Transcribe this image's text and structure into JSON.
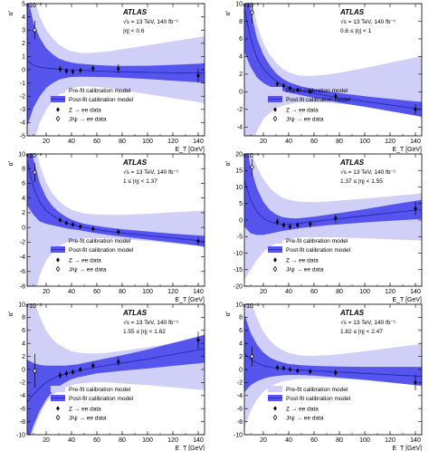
{
  "colors": {
    "prefit_band": "#cfcff7",
    "postfit_band": "#5555ee",
    "postfit_line": "#2222aa",
    "axes": "#000000"
  },
  "common": {
    "atlas_label": "ATLAS",
    "energy_label": "√s = 13 TeV, 140 fb⁻¹",
    "xlabel": "E_T [GeV]",
    "ylabel": "α'",
    "y_exponent": "×10⁻³",
    "legend": {
      "prefit": "Pre-fit calibration model",
      "postfit": "Post-fit calibration model",
      "zee": "Z → ee data",
      "jpsi": "J/ψ → ee data"
    }
  },
  "chart_data": [
    {
      "type": "line",
      "eta_label": "|η| < 0.6",
      "xlim": [
        5,
        145
      ],
      "ylim": [
        -5,
        5
      ],
      "yticks": [
        -5,
        -4,
        -3,
        -2,
        -1,
        0,
        1,
        2,
        3,
        4,
        5
      ],
      "xticks": [
        20,
        40,
        60,
        80,
        100,
        120,
        140
      ],
      "legend_pos": "bottom-right",
      "postfit_x": [
        5,
        10,
        15,
        20,
        25,
        30,
        35,
        40,
        45,
        50,
        60,
        70,
        80,
        100,
        120,
        140,
        145
      ],
      "postfit_center": [
        0.7,
        0.35,
        0.2,
        0.12,
        0.08,
        0.05,
        0.02,
        0.0,
        -0.03,
        -0.05,
        -0.1,
        -0.13,
        -0.16,
        -0.2,
        -0.23,
        -0.25,
        -0.26
      ],
      "postfit_half": [
        5.0,
        3.2,
        2.2,
        1.5,
        1.1,
        0.8,
        0.65,
        0.55,
        0.5,
        0.48,
        0.45,
        0.44,
        0.45,
        0.5,
        0.6,
        0.7,
        0.75
      ],
      "prefit_x": [
        5,
        10,
        15,
        20,
        25,
        30,
        35,
        40,
        45,
        50,
        60,
        70,
        80,
        100,
        120,
        140,
        145
      ],
      "prefit_center": [
        0.0,
        0.0,
        0.0,
        0.0,
        0.0,
        0.0,
        0.0,
        0.0,
        0.0,
        0.0,
        0.0,
        0.0,
        0.0,
        0.0,
        0.0,
        0.0,
        0.0
      ],
      "prefit_half": [
        8.0,
        5.5,
        4.0,
        3.0,
        2.4,
        1.9,
        1.6,
        1.4,
        1.3,
        1.25,
        1.3,
        1.4,
        1.55,
        1.85,
        2.15,
        2.45,
        2.55
      ],
      "zee": {
        "x": [
          31,
          36,
          41,
          47,
          57,
          77,
          140
        ],
        "y": [
          0.05,
          -0.1,
          -0.15,
          -0.05,
          0.1,
          0.08,
          -0.45
        ],
        "err": [
          0.25,
          0.22,
          0.2,
          0.2,
          0.25,
          0.35,
          0.5
        ]
      },
      "jpsi": {
        "x": [
          11
        ],
        "y": [
          3.0
        ],
        "err": [
          0.7
        ]
      }
    },
    {
      "type": "line",
      "eta_label": "0.6 ≤ |η| < 1",
      "xlim": [
        5,
        145
      ],
      "ylim": [
        -5,
        10
      ],
      "yticks": [
        -4,
        -2,
        0,
        2,
        4,
        6,
        8,
        10
      ],
      "xticks": [
        20,
        40,
        60,
        80,
        100,
        120,
        140
      ],
      "legend_pos": "bottom-right",
      "postfit_x": [
        5,
        10,
        15,
        20,
        25,
        30,
        35,
        40,
        45,
        50,
        60,
        70,
        80,
        100,
        120,
        140,
        145
      ],
      "postfit_center": [
        9.5,
        6.0,
        3.8,
        2.6,
        1.8,
        1.2,
        0.8,
        0.5,
        0.3,
        0.1,
        -0.2,
        -0.45,
        -0.7,
        -1.1,
        -1.5,
        -1.9,
        -2.0
      ],
      "postfit_half": [
        5.0,
        3.2,
        2.2,
        1.6,
        1.2,
        0.9,
        0.7,
        0.6,
        0.55,
        0.5,
        0.5,
        0.5,
        0.55,
        0.6,
        0.7,
        0.8,
        0.85
      ],
      "prefit_x": [
        5,
        10,
        15,
        20,
        25,
        30,
        35,
        40,
        45,
        50,
        60,
        70,
        80,
        100,
        120,
        140,
        145
      ],
      "prefit_center": [
        3.0,
        2.2,
        1.6,
        1.2,
        0.9,
        0.7,
        0.5,
        0.4,
        0.35,
        0.3,
        0.3,
        0.35,
        0.4,
        0.6,
        0.8,
        1.0,
        1.05
      ],
      "prefit_half": [
        14.0,
        9.0,
        6.0,
        4.3,
        3.3,
        2.6,
        2.1,
        1.8,
        1.6,
        1.5,
        1.5,
        1.6,
        1.75,
        2.1,
        2.5,
        2.9,
        3.0
      ],
      "zee": {
        "x": [
          31,
          36,
          41,
          47,
          57,
          77,
          140
        ],
        "y": [
          0.9,
          0.7,
          0.4,
          0.2,
          0.0,
          -0.5,
          -2.0
        ],
        "err": [
          0.3,
          0.3,
          0.25,
          0.25,
          0.3,
          0.35,
          0.6
        ]
      },
      "jpsi": {
        "x": [
          11
        ],
        "y": [
          9.0
        ],
        "err": [
          1.2
        ]
      }
    },
    {
      "type": "line",
      "eta_label": "1 ≤ |η| < 1.37",
      "xlim": [
        5,
        145
      ],
      "ylim": [
        -8,
        10
      ],
      "yticks": [
        -8,
        -6,
        -4,
        -2,
        0,
        2,
        4,
        6,
        8,
        10
      ],
      "xticks": [
        20,
        40,
        60,
        80,
        100,
        120,
        140
      ],
      "legend_pos": "bottom-right",
      "postfit_x": [
        5,
        10,
        15,
        20,
        25,
        30,
        35,
        40,
        45,
        50,
        60,
        70,
        80,
        100,
        120,
        140,
        145
      ],
      "postfit_center": [
        9.0,
        5.5,
        3.4,
        2.3,
        1.6,
        1.1,
        0.7,
        0.4,
        0.2,
        0.0,
        -0.3,
        -0.55,
        -0.75,
        -1.1,
        -1.45,
        -1.8,
        -1.9
      ],
      "postfit_half": [
        6.0,
        3.8,
        2.6,
        1.8,
        1.3,
        1.0,
        0.8,
        0.65,
        0.55,
        0.5,
        0.5,
        0.5,
        0.5,
        0.55,
        0.6,
        0.7,
        0.75
      ],
      "prefit_x": [
        5,
        10,
        15,
        20,
        25,
        30,
        35,
        40,
        45,
        50,
        60,
        70,
        80,
        100,
        120,
        140,
        145
      ],
      "prefit_center": [
        1.5,
        1.2,
        1.0,
        0.8,
        0.6,
        0.5,
        0.4,
        0.3,
        0.25,
        0.2,
        0.15,
        0.1,
        0.05,
        0.0,
        -0.05,
        -0.1,
        -0.1
      ],
      "prefit_half": [
        16.0,
        11.0,
        7.5,
        5.3,
        4.0,
        3.1,
        2.5,
        2.1,
        1.9,
        1.7,
        1.6,
        1.6,
        1.65,
        1.85,
        2.1,
        2.35,
        2.4
      ],
      "zee": {
        "x": [
          31,
          36,
          41,
          47,
          57,
          77,
          140
        ],
        "y": [
          1.0,
          0.6,
          0.4,
          0.1,
          -0.2,
          -0.6,
          -1.9
        ],
        "err": [
          0.3,
          0.3,
          0.25,
          0.25,
          0.3,
          0.35,
          0.5
        ]
      },
      "jpsi": {
        "x": [
          11
        ],
        "y": [
          7.5
        ],
        "err": [
          1.3
        ]
      }
    },
    {
      "type": "line",
      "eta_label": "1.37 ≤ |η| < 1.55",
      "xlim": [
        5,
        145
      ],
      "ylim": [
        -20,
        20
      ],
      "yticks": [
        -20,
        -15,
        -10,
        -5,
        0,
        5,
        10,
        15,
        20
      ],
      "xticks": [
        20,
        40,
        60,
        80,
        100,
        120,
        140
      ],
      "legend_pos": "bottom-right",
      "postfit_x": [
        5,
        10,
        15,
        20,
        25,
        30,
        35,
        40,
        45,
        50,
        60,
        70,
        80,
        100,
        120,
        140,
        145
      ],
      "postfit_center": [
        12.0,
        6.0,
        2.5,
        0.5,
        -0.5,
        -1.0,
        -1.2,
        -1.2,
        -1.1,
        -0.9,
        -0.5,
        0.0,
        0.4,
        1.3,
        2.2,
        3.0,
        3.2
      ],
      "postfit_half": [
        14.0,
        10.0,
        7.0,
        5.0,
        3.6,
        2.7,
        2.1,
        1.8,
        1.6,
        1.5,
        1.5,
        1.6,
        1.7,
        2.0,
        2.4,
        2.8,
        2.9
      ],
      "prefit_x": [
        5,
        10,
        15,
        20,
        25,
        30,
        35,
        40,
        45,
        50,
        60,
        70,
        80,
        100,
        120,
        140,
        145
      ],
      "prefit_center": [
        4.0,
        3.0,
        2.0,
        1.3,
        0.8,
        0.5,
        0.3,
        0.2,
        0.15,
        0.1,
        0.1,
        0.2,
        0.3,
        0.5,
        0.7,
        0.9,
        0.95
      ],
      "prefit_half": [
        22.0,
        18.0,
        14.0,
        11.0,
        9.0,
        7.5,
        6.5,
        6.0,
        5.6,
        5.4,
        5.3,
        5.4,
        5.6,
        6.0,
        6.5,
        7.0,
        7.2
      ],
      "zee": {
        "x": [
          31,
          36,
          41,
          47,
          57,
          77,
          140
        ],
        "y": [
          -0.5,
          -1.5,
          -2.0,
          -1.5,
          -1.2,
          0.5,
          3.5
        ],
        "err": [
          1.0,
          1.0,
          0.9,
          0.9,
          1.0,
          1.2,
          2.0
        ]
      },
      "jpsi": {
        "x": [
          11
        ],
        "y": [
          16.0
        ],
        "err": [
          2.5
        ]
      }
    },
    {
      "type": "line",
      "eta_label": "1.55 ≤ |η| < 1.82",
      "xlim": [
        5,
        145
      ],
      "ylim": [
        -10,
        10
      ],
      "yticks": [
        -10,
        -8,
        -6,
        -4,
        -2,
        0,
        2,
        4,
        6,
        8,
        10
      ],
      "xticks": [
        20,
        40,
        60,
        80,
        100,
        120,
        140
      ],
      "legend_pos": "bottom-left",
      "postfit_x": [
        5,
        10,
        15,
        20,
        25,
        30,
        35,
        40,
        45,
        50,
        60,
        70,
        80,
        100,
        120,
        140,
        145
      ],
      "postfit_center": [
        -5.0,
        -3.8,
        -2.8,
        -2.0,
        -1.4,
        -1.0,
        -0.7,
        -0.4,
        -0.2,
        0.0,
        0.4,
        0.7,
        1.0,
        1.6,
        2.3,
        3.0,
        3.2
      ],
      "postfit_half": [
        6.5,
        4.8,
        3.5,
        2.6,
        2.0,
        1.6,
        1.3,
        1.1,
        1.0,
        1.0,
        1.0,
        1.1,
        1.2,
        1.45,
        1.75,
        2.05,
        2.15
      ],
      "prefit_x": [
        5,
        10,
        15,
        20,
        25,
        30,
        35,
        40,
        45,
        50,
        60,
        70,
        80,
        100,
        120,
        140,
        145
      ],
      "prefit_center": [
        1.0,
        0.8,
        0.6,
        0.45,
        0.35,
        0.3,
        0.25,
        0.2,
        0.2,
        0.2,
        0.25,
        0.3,
        0.35,
        0.5,
        0.65,
        0.8,
        0.85
      ],
      "prefit_half": [
        14.0,
        10.0,
        7.5,
        5.5,
        4.3,
        3.5,
        3.0,
        2.6,
        2.4,
        2.3,
        2.2,
        2.3,
        2.5,
        2.9,
        3.4,
        3.9,
        4.0
      ],
      "zee": {
        "x": [
          31,
          36,
          41,
          47,
          57,
          77,
          140
        ],
        "y": [
          -0.9,
          -0.6,
          -0.4,
          0.0,
          0.6,
          1.2,
          4.5
        ],
        "err": [
          0.5,
          0.45,
          0.4,
          0.4,
          0.5,
          0.6,
          1.3
        ]
      },
      "jpsi": {
        "x": [
          11
        ],
        "y": [
          -0.2
        ],
        "err": [
          2.6
        ]
      }
    },
    {
      "type": "line",
      "eta_label": "1.82 ≤ |η| < 2.47",
      "xlim": [
        5,
        145
      ],
      "ylim": [
        -10,
        10
      ],
      "yticks": [
        -10,
        -8,
        -6,
        -4,
        -2,
        0,
        2,
        4,
        6,
        8,
        10
      ],
      "xticks": [
        20,
        40,
        60,
        80,
        100,
        120,
        140
      ],
      "legend_pos": "bottom-left",
      "postfit_x": [
        5,
        10,
        15,
        20,
        25,
        30,
        35,
        40,
        45,
        50,
        60,
        70,
        80,
        100,
        120,
        140,
        145
      ],
      "postfit_center": [
        2.5,
        1.6,
        1.0,
        0.6,
        0.35,
        0.2,
        0.1,
        0.0,
        -0.05,
        -0.1,
        -0.2,
        -0.3,
        -0.4,
        -0.6,
        -0.8,
        -1.0,
        -1.05
      ],
      "postfit_half": [
        6.0,
        4.0,
        2.8,
        2.0,
        1.5,
        1.2,
        1.0,
        0.85,
        0.8,
        0.75,
        0.75,
        0.8,
        0.85,
        1.0,
        1.2,
        1.4,
        1.45
      ],
      "prefit_x": [
        5,
        10,
        15,
        20,
        25,
        30,
        35,
        40,
        45,
        50,
        60,
        70,
        80,
        100,
        120,
        140,
        145
      ],
      "prefit_center": [
        3.0,
        2.2,
        1.6,
        1.2,
        0.9,
        0.7,
        0.55,
        0.45,
        0.4,
        0.35,
        0.35,
        0.4,
        0.45,
        0.6,
        0.75,
        0.9,
        0.95
      ],
      "prefit_half": [
        12.0,
        8.5,
        6.2,
        4.6,
        3.6,
        2.9,
        2.4,
        2.1,
        1.9,
        1.8,
        1.75,
        1.8,
        1.9,
        2.2,
        2.55,
        2.9,
        3.0
      ],
      "zee": {
        "x": [
          31,
          36,
          41,
          47,
          57,
          77,
          140
        ],
        "y": [
          0.3,
          0.2,
          0.0,
          -0.2,
          -0.3,
          -0.5,
          -2.0
        ],
        "err": [
          0.4,
          0.35,
          0.35,
          0.35,
          0.4,
          0.5,
          1.2
        ]
      },
      "jpsi": {
        "x": [
          11
        ],
        "y": [
          2.0
        ],
        "err": [
          1.5
        ]
      }
    }
  ]
}
